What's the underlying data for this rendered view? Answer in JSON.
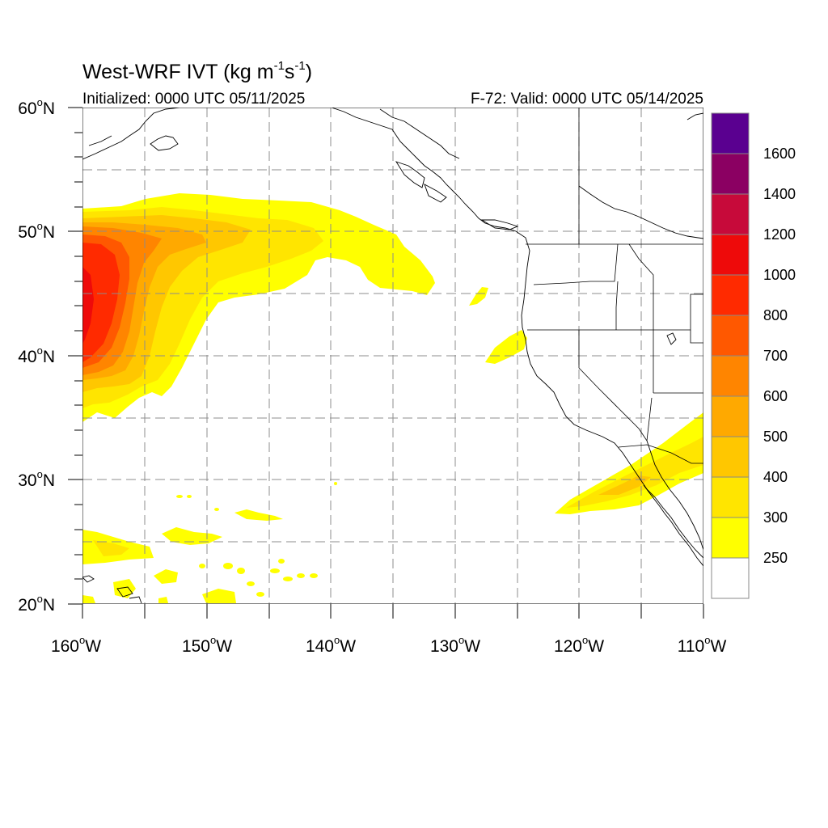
{
  "title": {
    "main": "West-WRF IVT (kg m",
    "sup1": "-1",
    "mid": "s",
    "sup2": "-1",
    "close": ")"
  },
  "subtitle_left": "Initialized: 0000 UTC 05/11/2025",
  "subtitle_right": "F-72: Valid: 0000 UTC 05/14/2025",
  "map": {
    "lon_range": [
      -160,
      -110
    ],
    "lat_range": [
      20,
      60
    ],
    "lon_ticks": [
      {
        "value": -160,
        "label": "160",
        "suffix": "W"
      },
      {
        "value": -150,
        "label": "150",
        "suffix": "W"
      },
      {
        "value": -140,
        "label": "140",
        "suffix": "W"
      },
      {
        "value": -130,
        "label": "130",
        "suffix": "W"
      },
      {
        "value": -120,
        "label": "120",
        "suffix": "W"
      },
      {
        "value": -110,
        "label": "110",
        "suffix": "W"
      }
    ],
    "lat_ticks": [
      {
        "value": 20,
        "label": "20",
        "suffix": "N"
      },
      {
        "value": 30,
        "label": "30",
        "suffix": "N"
      },
      {
        "value": 40,
        "label": "40",
        "suffix": "N"
      },
      {
        "value": 50,
        "label": "50",
        "suffix": "N"
      },
      {
        "value": 60,
        "label": "60",
        "suffix": "N"
      }
    ],
    "degree_symbol": "o",
    "grid_lines": "dashed, every 5 degrees",
    "colors": {
      "land_outline": "#000000",
      "grid": "#888888"
    }
  },
  "colorbar": {
    "levels": [
      {
        "label": "250",
        "color": "#ffffff"
      },
      {
        "label": "300",
        "color": "#ffff00"
      },
      {
        "label": "400",
        "color": "#ffe500"
      },
      {
        "label": "500",
        "color": "#ffc700"
      },
      {
        "label": "600",
        "color": "#ffa900"
      },
      {
        "label": "700",
        "color": "#ff8500"
      },
      {
        "label": "800",
        "color": "#ff5800"
      },
      {
        "label": "1000",
        "color": "#ff2a00"
      },
      {
        "label": "1200",
        "color": "#ee0a0a"
      },
      {
        "label": "1400",
        "color": "#c70a3a"
      },
      {
        "label": "1600",
        "color": "#8b0062"
      },
      {
        "label": "",
        "color": "#5a0090"
      }
    ]
  }
}
